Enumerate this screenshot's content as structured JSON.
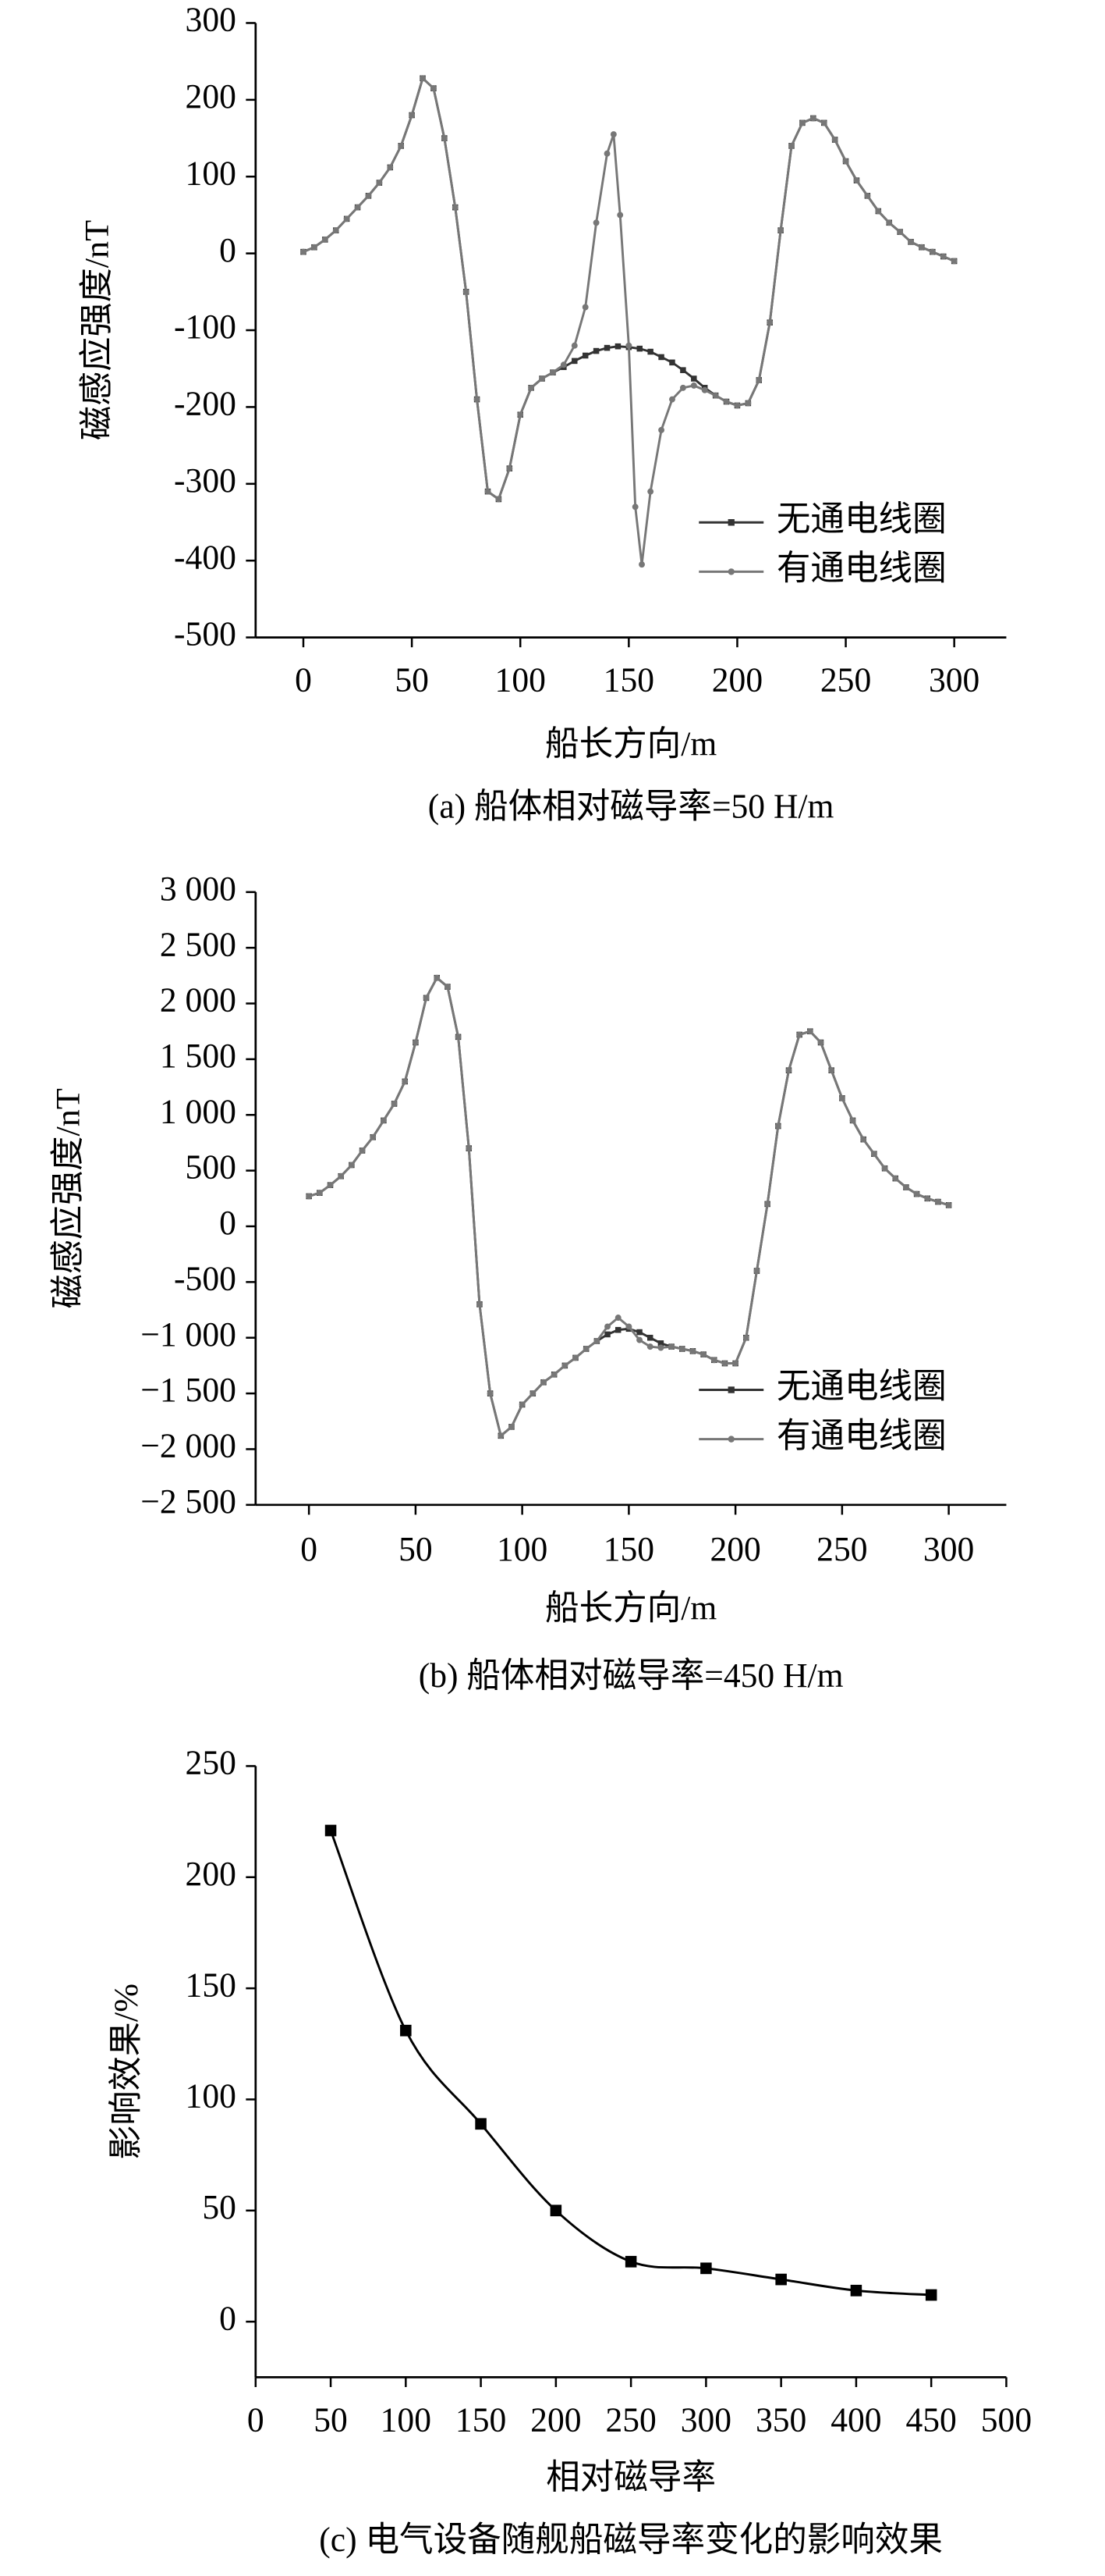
{
  "chart_data": [
    {
      "type": "line",
      "caption": "(a) 船体相对磁导率=50 H/m",
      "xlabel": "船长方向/m",
      "ylabel": "磁感应强度/nT",
      "xlim": [
        -22,
        324
      ],
      "ylim": [
        -500,
        300
      ],
      "xticks": [
        0,
        50,
        100,
        150,
        200,
        250,
        300
      ],
      "yticks": [
        -500,
        -400,
        -300,
        -200,
        -100,
        0,
        100,
        200,
        300
      ],
      "legend": "lower right",
      "series": [
        {
          "name": "无通电线圈",
          "color": "#333333",
          "marker": "square",
          "x": [
            0,
            5,
            10,
            15,
            20,
            25,
            30,
            35,
            40,
            45,
            50,
            55,
            60,
            65,
            70,
            75,
            80,
            85,
            90,
            95,
            100,
            105,
            110,
            115,
            120,
            125,
            130,
            135,
            140,
            145,
            150,
            155,
            160,
            165,
            170,
            175,
            180,
            185,
            190,
            195,
            200,
            205,
            210,
            215,
            220,
            225,
            230,
            235,
            240,
            245,
            250,
            255,
            260,
            265,
            270,
            275,
            280,
            285,
            290,
            295,
            300
          ],
          "values": [
            2,
            8,
            18,
            30,
            45,
            60,
            75,
            92,
            112,
            140,
            180,
            228,
            215,
            150,
            60,
            -50,
            -190,
            -310,
            -320,
            -280,
            -210,
            -175,
            -163,
            -155,
            -148,
            -140,
            -133,
            -127,
            -123,
            -121,
            -122,
            -124,
            -128,
            -135,
            -142,
            -152,
            -163,
            -175,
            -185,
            -193,
            -198,
            -195,
            -165,
            -90,
            30,
            140,
            170,
            176,
            170,
            148,
            120,
            95,
            75,
            55,
            40,
            28,
            15,
            8,
            2,
            -4,
            -10
          ]
        },
        {
          "name": "有通电线圈",
          "color": "#777777",
          "marker": "circle",
          "x": [
            0,
            5,
            10,
            15,
            20,
            25,
            30,
            35,
            40,
            45,
            50,
            55,
            60,
            65,
            70,
            75,
            80,
            85,
            90,
            95,
            100,
            105,
            110,
            115,
            120,
            125,
            130,
            135,
            140,
            143,
            146,
            150,
            153,
            156,
            160,
            165,
            170,
            175,
            180,
            185,
            190,
            195,
            200,
            205,
            210,
            215,
            220,
            225,
            230,
            235,
            240,
            245,
            250,
            255,
            260,
            265,
            270,
            275,
            280,
            285,
            290,
            295,
            300
          ],
          "values": [
            2,
            8,
            18,
            30,
            45,
            60,
            75,
            92,
            112,
            140,
            180,
            228,
            215,
            150,
            60,
            -50,
            -190,
            -310,
            -320,
            -280,
            -210,
            -175,
            -163,
            -155,
            -145,
            -120,
            -70,
            40,
            130,
            155,
            50,
            -120,
            -330,
            -405,
            -310,
            -230,
            -190,
            -175,
            -172,
            -178,
            -185,
            -193,
            -198,
            -195,
            -165,
            -90,
            30,
            140,
            170,
            176,
            170,
            148,
            120,
            95,
            75,
            55,
            40,
            28,
            15,
            8,
            2,
            -4,
            -10
          ]
        }
      ]
    },
    {
      "type": "line",
      "caption": "(b) 船体相对磁导率=450 H/m",
      "xlabel": "船长方向/m",
      "ylabel": "磁感应强度/nT",
      "xlim": [
        -25,
        327
      ],
      "ylim": [
        -2500,
        3000
      ],
      "xticks": [
        0,
        50,
        100,
        150,
        200,
        250,
        300
      ],
      "yticks": [
        {
          "value": -2500,
          "label": "−2 500"
        },
        {
          "value": -2000,
          "label": "−2 000"
        },
        {
          "value": -1500,
          "label": "−1 500"
        },
        {
          "value": -1000,
          "label": "−1 000"
        },
        -500,
        0,
        500,
        {
          "value": 1000,
          "label": "1 000"
        },
        {
          "value": 1500,
          "label": "1 500"
        },
        {
          "value": 2000,
          "label": "2 000"
        },
        {
          "value": 2500,
          "label": "2 500"
        },
        {
          "value": 3000,
          "label": "3 000"
        }
      ],
      "legend": "lower right",
      "series": [
        {
          "name": "无通电线圈",
          "color": "#333333",
          "marker": "square",
          "x": [
            0,
            5,
            10,
            15,
            20,
            25,
            30,
            35,
            40,
            45,
            50,
            55,
            60,
            65,
            70,
            75,
            80,
            85,
            90,
            95,
            100,
            105,
            110,
            115,
            120,
            125,
            130,
            135,
            140,
            145,
            150,
            155,
            160,
            165,
            170,
            175,
            180,
            185,
            190,
            195,
            200,
            205,
            210,
            215,
            220,
            225,
            230,
            235,
            240,
            245,
            250,
            255,
            260,
            265,
            270,
            275,
            280,
            285,
            290,
            295,
            300
          ],
          "values": [
            270,
            300,
            370,
            450,
            550,
            680,
            800,
            950,
            1100,
            1300,
            1650,
            2050,
            2230,
            2150,
            1700,
            700,
            -700,
            -1500,
            -1880,
            -1800,
            -1600,
            -1500,
            -1400,
            -1330,
            -1250,
            -1180,
            -1100,
            -1030,
            -970,
            -930,
            -920,
            -950,
            -1000,
            -1050,
            -1080,
            -1100,
            -1120,
            -1150,
            -1200,
            -1230,
            -1230,
            -1000,
            -400,
            200,
            900,
            1400,
            1720,
            1750,
            1650,
            1400,
            1150,
            950,
            780,
            650,
            520,
            430,
            350,
            290,
            250,
            220,
            190
          ]
        },
        {
          "name": "有通电线圈",
          "color": "#777777",
          "marker": "circle",
          "x": [
            0,
            5,
            10,
            15,
            20,
            25,
            30,
            35,
            40,
            45,
            50,
            55,
            60,
            65,
            70,
            75,
            80,
            85,
            90,
            95,
            100,
            105,
            110,
            115,
            120,
            125,
            130,
            135,
            140,
            145,
            150,
            155,
            160,
            165,
            170,
            175,
            180,
            185,
            190,
            195,
            200,
            205,
            210,
            215,
            220,
            225,
            230,
            235,
            240,
            245,
            250,
            255,
            260,
            265,
            270,
            275,
            280,
            285,
            290,
            295,
            300
          ],
          "values": [
            270,
            300,
            370,
            450,
            550,
            680,
            800,
            950,
            1100,
            1300,
            1650,
            2050,
            2230,
            2150,
            1700,
            700,
            -700,
            -1500,
            -1880,
            -1800,
            -1600,
            -1500,
            -1400,
            -1330,
            -1250,
            -1180,
            -1100,
            -1030,
            -900,
            -820,
            -900,
            -1020,
            -1080,
            -1090,
            -1080,
            -1100,
            -1120,
            -1150,
            -1200,
            -1230,
            -1230,
            -1000,
            -400,
            200,
            900,
            1400,
            1720,
            1750,
            1650,
            1400,
            1150,
            950,
            780,
            650,
            520,
            430,
            350,
            290,
            250,
            220,
            190
          ]
        }
      ]
    },
    {
      "type": "line",
      "caption": "(c) 电气设备随舰船磁导率变化的影响效果",
      "xlabel": "相对磁导率",
      "ylabel": "影响效果/%",
      "xlim": [
        0,
        500
      ],
      "ylim": [
        -25,
        250
      ],
      "xticks": [
        0,
        50,
        100,
        150,
        200,
        250,
        300,
        350,
        400,
        450,
        500
      ],
      "yticks": [
        0,
        50,
        100,
        150,
        200,
        250
      ],
      "smooth": true,
      "series": [
        {
          "color": "#000000",
          "marker": "square",
          "x": [
            50,
            100,
            150,
            200,
            250,
            300,
            350,
            400,
            450
          ],
          "values": [
            221,
            131,
            89,
            50,
            27,
            24,
            19,
            14,
            12
          ]
        }
      ]
    }
  ]
}
